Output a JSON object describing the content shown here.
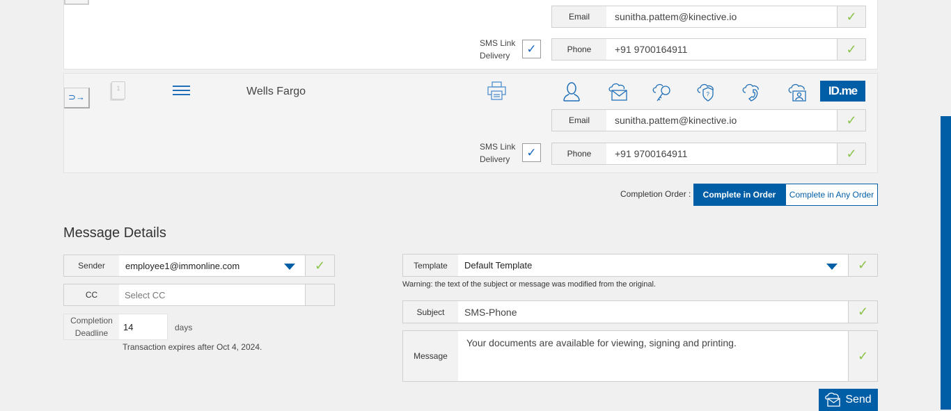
{
  "recipients": [
    {
      "name": "",
      "email_label": "Email",
      "email": "sunitha.pattem@kinective.io",
      "phone_label": "Phone",
      "phone": "+91 9700164911",
      "sms_label_1": "SMS Link",
      "sms_label_2": "Delivery",
      "check": "✓"
    },
    {
      "name": "Wells Fargo",
      "email_label": "Email",
      "email": "sunitha.pattem@kinective.io",
      "phone_label": "Phone",
      "phone": "+91 9700164911",
      "sms_label_1": "SMS Link",
      "sms_label_2": "Delivery",
      "check": "✓",
      "doc_count": "1",
      "idme": "ID.me"
    }
  ],
  "completion_order": {
    "label": "Completion Order :",
    "in_order": "Complete in Order",
    "any_order": "Complete in Any Order"
  },
  "message_details": {
    "title": "Message Details",
    "sender_label": "Sender",
    "sender": "employee1@immonline.com",
    "cc_label": "CC",
    "cc_placeholder": "Select CC",
    "deadline_label_1": "Completion",
    "deadline_label_2": "Deadline",
    "deadline": "14",
    "days": "days",
    "expiry": "Transaction expires after Oct 4, 2024.",
    "template_label": "Template",
    "template": "Default Template",
    "warning": "Warning: the text of the subject or message was modified from the original.",
    "subject_label": "Subject",
    "subject": "SMS-Phone",
    "message_label": "Message",
    "message": "Your documents are available for viewing, signing and printing.",
    "send": "Send",
    "check": "✓"
  },
  "colors": {
    "accent": "#005ea6",
    "check": "#8bc34a"
  }
}
